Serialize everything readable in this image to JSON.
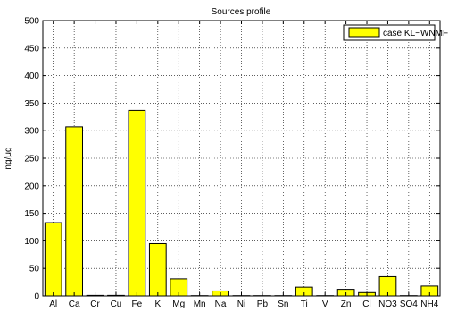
{
  "chart_data": {
    "type": "bar",
    "title": "Sources profile",
    "xlabel": "",
    "ylabel": "ng/μg",
    "categories": [
      "Al",
      "Ca",
      "Cr",
      "Cu",
      "Fe",
      "K",
      "Mg",
      "Mn",
      "Na",
      "Ni",
      "Pb",
      "Sn",
      "Ti",
      "V",
      "Zn",
      "Cl",
      "NO3",
      "SO4",
      "NH4"
    ],
    "series": [
      {
        "name": "case KL−WNMF",
        "values": [
          133,
          307,
          1,
          1,
          337,
          95,
          31,
          0.5,
          9,
          0.5,
          0.5,
          0.5,
          16,
          0.5,
          12,
          6,
          35,
          0.5,
          18
        ],
        "color": "#ffff00"
      }
    ],
    "ylim": [
      0,
      500
    ],
    "yticks": [
      0,
      50,
      100,
      150,
      200,
      250,
      300,
      350,
      400,
      450,
      500
    ],
    "grid": true,
    "legend_position": "top-right"
  }
}
